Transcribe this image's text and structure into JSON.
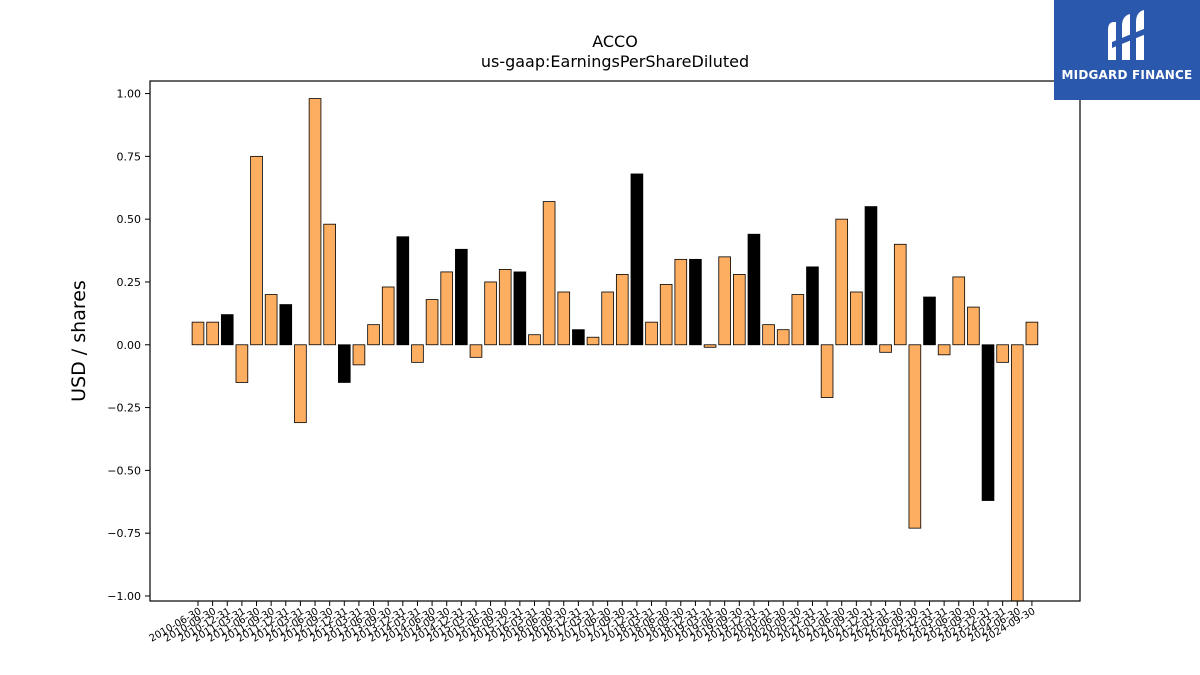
{
  "chart_data": {
    "type": "bar",
    "title": "ACCO",
    "subtitle": "us-gaap:EarningsPerShareDiluted",
    "xlabel": "",
    "ylabel": "USD / shares",
    "ylim": [
      -1.02,
      1.05
    ],
    "yticks": [
      1.0,
      0.75,
      0.5,
      0.25,
      0.0,
      -0.25,
      -0.5,
      -0.75,
      -1.0
    ],
    "ytick_labels": [
      "1.00",
      "0.75",
      "0.50",
      "0.25",
      "0.00",
      "−0.25",
      "−0.50",
      "−0.75",
      "−1.00"
    ],
    "grid": false,
    "legend": "none",
    "colors": {
      "quarter": "#fdae61",
      "annual": "#000000",
      "edge": "#000000"
    },
    "categories": [
      "2010-06-30",
      "2010-09-30",
      "2010-12-31",
      "2011-03-31",
      "2011-06-30",
      "2011-09-30",
      "2011-12-31",
      "2012-03-31",
      "2012-06-30",
      "2012-09-30",
      "2012-12-31",
      "2013-03-31",
      "2013-06-30",
      "2013-09-30",
      "2013-12-31",
      "2014-03-31",
      "2014-06-30",
      "2014-09-30",
      "2014-12-31",
      "2015-03-31",
      "2015-06-30",
      "2015-09-30",
      "2015-12-31",
      "2016-03-31",
      "2016-06-30",
      "2016-09-30",
      "2016-12-31",
      "2017-03-31",
      "2017-06-30",
      "2017-09-30",
      "2017-12-31",
      "2018-03-31",
      "2018-06-30",
      "2018-09-30",
      "2018-12-31",
      "2019-03-31",
      "2019-06-30",
      "2019-09-30",
      "2019-12-31",
      "2020-03-31",
      "2020-06-30",
      "2020-09-30",
      "2020-12-31",
      "2021-03-31",
      "2021-06-30",
      "2021-09-30",
      "2021-12-31",
      "2022-03-31",
      "2022-06-30",
      "2022-09-30",
      "2022-12-31",
      "2023-03-31",
      "2023-06-30",
      "2023-09-30",
      "2023-12-31",
      "2024-03-31",
      "2024-06-30",
      "2024-09-30"
    ],
    "values": [
      0.09,
      0.09,
      0.12,
      -0.15,
      0.75,
      0.2,
      0.16,
      -0.31,
      0.98,
      0.48,
      -0.15,
      -0.08,
      0.08,
      0.23,
      0.43,
      -0.07,
      0.18,
      0.29,
      0.38,
      -0.05,
      0.25,
      0.3,
      0.29,
      0.04,
      0.57,
      0.21,
      0.06,
      0.03,
      0.21,
      0.28,
      0.68,
      0.09,
      0.24,
      0.34,
      0.34,
      -0.01,
      0.35,
      0.28,
      0.44,
      0.08,
      0.06,
      0.2,
      0.31,
      -0.21,
      0.5,
      0.21,
      0.55,
      -0.03,
      0.4,
      -0.73,
      0.19,
      -0.04,
      0.27,
      0.15,
      -0.62,
      -0.07,
      -1.02,
      0.09
    ],
    "annual": [
      false,
      false,
      true,
      false,
      false,
      false,
      true,
      false,
      false,
      false,
      true,
      false,
      false,
      false,
      true,
      false,
      false,
      false,
      true,
      false,
      false,
      false,
      true,
      false,
      false,
      false,
      true,
      false,
      false,
      false,
      true,
      false,
      false,
      false,
      true,
      false,
      false,
      false,
      true,
      false,
      false,
      false,
      true,
      false,
      false,
      false,
      true,
      false,
      false,
      false,
      true,
      false,
      false,
      false,
      true,
      false,
      false,
      false
    ]
  },
  "logo": {
    "text": "MIDGARD FINANCE",
    "icon": "midgard-m-logo-icon"
  }
}
